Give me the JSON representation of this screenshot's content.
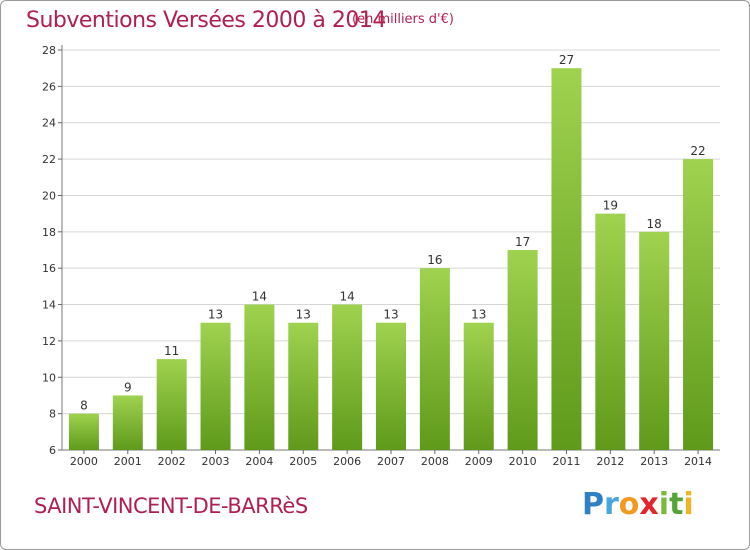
{
  "title": "Subventions Versées 2000 à 2014",
  "subtitle": "(en milliers d'€)",
  "commune": "SAINT-VINCENT-DE-BARRèS",
  "logo": {
    "text": "Proxiti"
  },
  "colors": {
    "title": "#b0204f",
    "bar_top": "#9fd24f",
    "bar_bottom": "#5f9a1a",
    "grid": "#d7d7d7"
  },
  "chart_data": {
    "type": "bar",
    "title": "Subventions Versées 2000 à 2014",
    "categories": [
      "2000",
      "2001",
      "2002",
      "2003",
      "2004",
      "2005",
      "2006",
      "2007",
      "2008",
      "2009",
      "2010",
      "2011",
      "2012",
      "2013",
      "2014"
    ],
    "values": [
      8,
      9,
      11,
      13,
      14,
      13,
      14,
      13,
      16,
      13,
      17,
      27,
      19,
      18,
      22
    ],
    "ylim": [
      6,
      28
    ],
    "yticks": [
      6,
      8,
      10,
      12,
      14,
      16,
      18,
      20,
      22,
      24,
      26,
      28
    ],
    "grid": true,
    "xlabel": "",
    "ylabel": ""
  }
}
